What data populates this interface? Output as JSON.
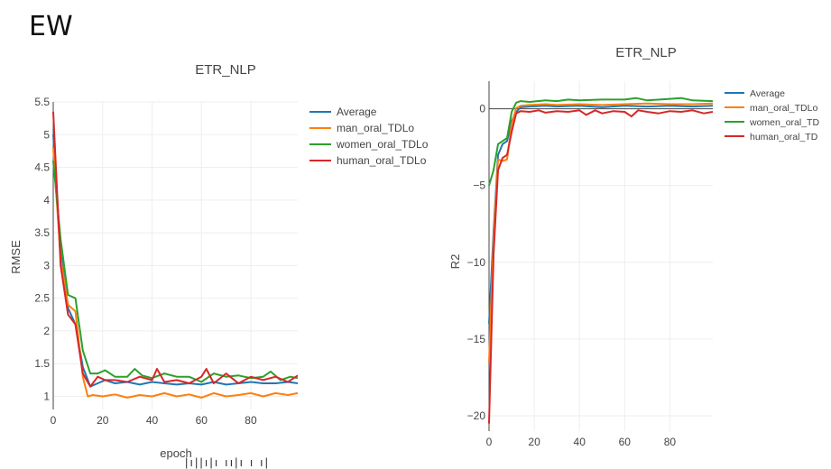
{
  "page": {
    "heading": "EW",
    "cutoff_text": "|ı||ı|ı  ıı|ı  ı  ı|"
  },
  "colors": {
    "Average": "#1f77b4",
    "man_oral_TDLo": "#ff7f0e",
    "women_oral_TDLo": "#2ca02c",
    "human_oral_TDLo": "#d62728"
  },
  "chart_data": [
    {
      "type": "line",
      "title": "ETR_NLP",
      "xlabel": "epoch",
      "ylabel": "RMSE",
      "xlim": [
        0,
        99
      ],
      "ylim": [
        0.8,
        5.5
      ],
      "xticks": [
        "0",
        "20",
        "40",
        "60",
        "80"
      ],
      "yticks": [
        "1",
        "1.5",
        "2",
        "2.5",
        "3",
        "3.5",
        "4",
        "4.5",
        "5",
        "5.5"
      ],
      "legend": "top-right",
      "series": [
        {
          "name": "Average",
          "x": [
            0,
            3,
            6,
            9,
            12,
            15,
            18,
            21,
            25,
            30,
            35,
            40,
            45,
            50,
            55,
            60,
            65,
            70,
            75,
            80,
            85,
            90,
            95,
            99
          ],
          "y": [
            5.0,
            3.2,
            2.35,
            2.1,
            1.45,
            1.15,
            1.2,
            1.25,
            1.2,
            1.22,
            1.18,
            1.22,
            1.2,
            1.18,
            1.2,
            1.18,
            1.22,
            1.18,
            1.2,
            1.22,
            1.2,
            1.2,
            1.22,
            1.2
          ]
        },
        {
          "name": "man_oral_TDLo",
          "x": [
            0,
            3,
            6,
            9,
            12,
            14,
            16,
            20,
            25,
            30,
            35,
            40,
            45,
            50,
            55,
            60,
            65,
            70,
            75,
            80,
            85,
            90,
            95,
            99
          ],
          "y": [
            4.8,
            3.1,
            2.4,
            2.3,
            1.3,
            1.0,
            1.02,
            1.0,
            1.03,
            0.98,
            1.02,
            1.0,
            1.05,
            1.0,
            1.03,
            0.98,
            1.05,
            1.0,
            1.02,
            1.05,
            1.0,
            1.05,
            1.02,
            1.05
          ]
        },
        {
          "name": "women_oral_TDLo",
          "x": [
            0,
            3,
            6,
            9,
            12,
            15,
            18,
            21,
            25,
            30,
            33,
            36,
            40,
            45,
            50,
            55,
            60,
            65,
            70,
            75,
            80,
            85,
            88,
            92,
            96,
            99
          ],
          "y": [
            4.6,
            3.4,
            2.55,
            2.5,
            1.7,
            1.35,
            1.35,
            1.4,
            1.3,
            1.3,
            1.42,
            1.32,
            1.28,
            1.35,
            1.3,
            1.3,
            1.22,
            1.35,
            1.3,
            1.32,
            1.28,
            1.3,
            1.38,
            1.25,
            1.3,
            1.28
          ]
        },
        {
          "name": "human_oral_TDLo",
          "x": [
            0,
            3,
            6,
            9,
            12,
            15,
            18,
            21,
            25,
            30,
            35,
            40,
            42,
            45,
            50,
            55,
            60,
            62,
            65,
            70,
            75,
            80,
            85,
            90,
            95,
            99
          ],
          "y": [
            5.35,
            3.0,
            2.25,
            2.1,
            1.35,
            1.15,
            1.3,
            1.25,
            1.25,
            1.22,
            1.3,
            1.25,
            1.42,
            1.22,
            1.25,
            1.2,
            1.3,
            1.42,
            1.2,
            1.35,
            1.2,
            1.3,
            1.25,
            1.3,
            1.22,
            1.32
          ]
        }
      ]
    },
    {
      "type": "line",
      "title": "ETR_NLP",
      "xlabel": "",
      "ylabel": "R2",
      "xlim": [
        0,
        99
      ],
      "ylim": [
        -21,
        1.8
      ],
      "xticks": [
        "0",
        "20",
        "40",
        "60",
        "80"
      ],
      "yticks": [
        "0",
        "−5",
        "−10",
        "−15",
        "−20"
      ],
      "legend": "top-right",
      "legend_labels": [
        "Average",
        "man_oral_TDLo",
        "women_oral_TD",
        "human_oral_TD"
      ],
      "series": [
        {
          "name": "Average",
          "x": [
            0,
            2,
            4,
            6,
            8,
            10,
            12,
            14,
            18,
            25,
            30,
            40,
            50,
            60,
            70,
            80,
            90,
            99
          ],
          "y": [
            -14,
            -8,
            -3,
            -2.3,
            -2.1,
            -0.8,
            -0.2,
            0.1,
            0.15,
            0.2,
            0.15,
            0.2,
            0.1,
            0.2,
            0.15,
            0.2,
            0.15,
            0.2
          ]
        },
        {
          "name": "man_oral_TDLo",
          "x": [
            0,
            2,
            4,
            6,
            8,
            10,
            12,
            14,
            18,
            25,
            30,
            40,
            50,
            60,
            70,
            80,
            90,
            99
          ],
          "y": [
            -16.5,
            -8.5,
            -3.3,
            -3.4,
            -3.3,
            -1.0,
            0.05,
            0.2,
            0.25,
            0.3,
            0.25,
            0.3,
            0.25,
            0.3,
            0.35,
            0.3,
            0.3,
            0.35
          ]
        },
        {
          "name": "women_oral_TDLo",
          "x": [
            0,
            2,
            4,
            6,
            8,
            10,
            12,
            14,
            18,
            25,
            30,
            35,
            40,
            50,
            60,
            65,
            70,
            80,
            85,
            90,
            99
          ],
          "y": [
            -5,
            -4,
            -2.3,
            -2.1,
            -1.9,
            -0.2,
            0.4,
            0.5,
            0.45,
            0.55,
            0.5,
            0.6,
            0.55,
            0.6,
            0.6,
            0.7,
            0.55,
            0.65,
            0.7,
            0.55,
            0.5
          ]
        },
        {
          "name": "human_oral_TDLo",
          "x": [
            0,
            2,
            4,
            6,
            8,
            10,
            12,
            14,
            18,
            22,
            25,
            30,
            35,
            40,
            43,
            47,
            50,
            55,
            60,
            63,
            66,
            70,
            75,
            80,
            85,
            90,
            95,
            99
          ],
          "y": [
            -20.5,
            -9.5,
            -4,
            -3.2,
            -3.0,
            -1.5,
            -0.3,
            -0.15,
            -0.2,
            -0.1,
            -0.25,
            -0.15,
            -0.2,
            -0.1,
            -0.4,
            -0.1,
            -0.3,
            -0.15,
            -0.2,
            -0.5,
            -0.1,
            -0.2,
            -0.3,
            -0.15,
            -0.2,
            -0.1,
            -0.3,
            -0.2
          ]
        }
      ]
    }
  ]
}
